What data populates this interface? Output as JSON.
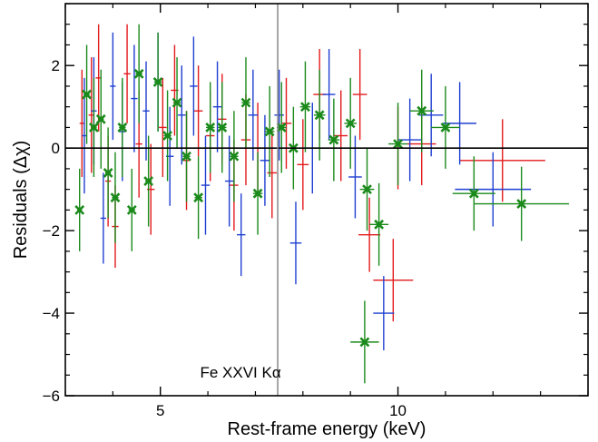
{
  "chart_data": {
    "type": "scatter",
    "title": "",
    "xlabel": "Rest-frame energy (keV)",
    "ylabel": "Residuals (Δχ)",
    "xlim": [
      3.0,
      14.0
    ],
    "ylim": [
      -6,
      3.5
    ],
    "x_ticks": [
      5,
      10
    ],
    "x_tick_labels": [
      "5",
      "10"
    ],
    "y_ticks": [
      -6,
      -4,
      -2,
      0,
      2
    ],
    "y_tick_labels": [
      "−6",
      "−4",
      "−2",
      "0",
      "2"
    ],
    "grid": false,
    "legend": "none",
    "zero_line": 0,
    "vertical_line": {
      "x": 7.47,
      "label": "Fe XXVI Kα"
    },
    "series": [
      {
        "color": "#e31a1c",
        "marker": "cross",
        "points": [
          {
            "x": 3.35,
            "y": 0.6,
            "xerr": 0.05,
            "yerr": 1.3
          },
          {
            "x": 3.55,
            "y": 0.8,
            "xerr": 0.06,
            "yerr": 1.4
          },
          {
            "x": 3.7,
            "y": 1.7,
            "xerr": 0.06,
            "yerr": 1.3
          },
          {
            "x": 3.9,
            "y": -0.8,
            "xerr": 0.06,
            "yerr": 1.1
          },
          {
            "x": 4.05,
            "y": -1.9,
            "xerr": 0.07,
            "yerr": 1.0
          },
          {
            "x": 4.3,
            "y": 1.8,
            "xerr": 0.07,
            "yerr": 1.2
          },
          {
            "x": 4.55,
            "y": 0.1,
            "xerr": 0.07,
            "yerr": 1.3
          },
          {
            "x": 4.8,
            "y": -1.0,
            "xerr": 0.08,
            "yerr": 1.1
          },
          {
            "x": 5.05,
            "y": 0.5,
            "xerr": 0.08,
            "yerr": 1.2
          },
          {
            "x": 5.3,
            "y": 1.4,
            "xerr": 0.08,
            "yerr": 1.1
          },
          {
            "x": 5.55,
            "y": -0.3,
            "xerr": 0.08,
            "yerr": 1.2
          },
          {
            "x": 5.8,
            "y": 0.9,
            "xerr": 0.09,
            "yerr": 1.1
          },
          {
            "x": 6.05,
            "y": 0.3,
            "xerr": 0.09,
            "yerr": 1.1
          },
          {
            "x": 6.3,
            "y": 0.7,
            "xerr": 0.09,
            "yerr": 1.1
          },
          {
            "x": 6.55,
            "y": -0.9,
            "xerr": 0.09,
            "yerr": 1.1
          },
          {
            "x": 6.8,
            "y": 0.2,
            "xerr": 0.1,
            "yerr": 1.1
          },
          {
            "x": 7.05,
            "y": 0.0,
            "xerr": 0.1,
            "yerr": 1.1
          },
          {
            "x": 7.35,
            "y": -0.6,
            "xerr": 0.1,
            "yerr": 1.1
          },
          {
            "x": 7.65,
            "y": 0.6,
            "xerr": 0.11,
            "yerr": 1.1
          },
          {
            "x": 8.0,
            "y": -0.4,
            "xerr": 0.12,
            "yerr": 1.1
          },
          {
            "x": 8.35,
            "y": 1.3,
            "xerr": 0.13,
            "yerr": 1.1
          },
          {
            "x": 8.8,
            "y": 0.3,
            "xerr": 0.14,
            "yerr": 1.1
          },
          {
            "x": 9.2,
            "y": 1.3,
            "xerr": 0.15,
            "yerr": 1.1
          },
          {
            "x": 9.4,
            "y": -2.1,
            "xerr": 0.23,
            "yerr": 0.9
          },
          {
            "x": 9.9,
            "y": -3.2,
            "xerr": 0.42,
            "yerr": 1.0
          },
          {
            "x": 10.0,
            "y": 0.0,
            "xerr": 0.3,
            "yerr": 1.0
          },
          {
            "x": 10.5,
            "y": 0.1,
            "xerr": 0.3,
            "yerr": 1.0
          },
          {
            "x": 12.2,
            "y": -0.3,
            "xerr": 0.9,
            "yerr": 1.0
          }
        ]
      },
      {
        "color": "#1f3fd1",
        "marker": "cross",
        "points": [
          {
            "x": 3.4,
            "y": 0.3,
            "xerr": 0.05,
            "yerr": 1.4
          },
          {
            "x": 3.6,
            "y": 0.9,
            "xerr": 0.06,
            "yerr": 1.3
          },
          {
            "x": 3.8,
            "y": -1.7,
            "xerr": 0.06,
            "yerr": 1.1
          },
          {
            "x": 4.0,
            "y": 1.5,
            "xerr": 0.06,
            "yerr": 1.3
          },
          {
            "x": 4.2,
            "y": 0.4,
            "xerr": 0.07,
            "yerr": 1.2
          },
          {
            "x": 4.45,
            "y": 1.2,
            "xerr": 0.07,
            "yerr": 1.3
          },
          {
            "x": 4.7,
            "y": 0.9,
            "xerr": 0.07,
            "yerr": 1.2
          },
          {
            "x": 4.95,
            "y": 1.6,
            "xerr": 0.08,
            "yerr": 1.2
          },
          {
            "x": 5.2,
            "y": -0.2,
            "xerr": 0.08,
            "yerr": 1.2
          },
          {
            "x": 5.45,
            "y": 0.8,
            "xerr": 0.08,
            "yerr": 1.2
          },
          {
            "x": 5.7,
            "y": 1.5,
            "xerr": 0.08,
            "yerr": 1.2
          },
          {
            "x": 5.95,
            "y": -0.9,
            "xerr": 0.09,
            "yerr": 1.2
          },
          {
            "x": 6.2,
            "y": 1.0,
            "xerr": 0.09,
            "yerr": 1.1
          },
          {
            "x": 6.45,
            "y": -0.8,
            "xerr": 0.09,
            "yerr": 1.1
          },
          {
            "x": 6.7,
            "y": -2.1,
            "xerr": 0.09,
            "yerr": 1.0
          },
          {
            "x": 6.95,
            "y": 0.8,
            "xerr": 0.1,
            "yerr": 1.1
          },
          {
            "x": 7.2,
            "y": -0.3,
            "xerr": 0.1,
            "yerr": 1.1
          },
          {
            "x": 7.5,
            "y": 0.8,
            "xerr": 0.1,
            "yerr": 1.1
          },
          {
            "x": 7.85,
            "y": -2.3,
            "xerr": 0.12,
            "yerr": 1.0
          },
          {
            "x": 8.2,
            "y": 0.0,
            "xerr": 0.12,
            "yerr": 1.1
          },
          {
            "x": 8.55,
            "y": 1.3,
            "xerr": 0.13,
            "yerr": 1.1
          },
          {
            "x": 9.1,
            "y": -0.7,
            "xerr": 0.14,
            "yerr": 1.0
          },
          {
            "x": 9.7,
            "y": -4.0,
            "xerr": 0.22,
            "yerr": 0.9
          },
          {
            "x": 10.25,
            "y": 0.2,
            "xerr": 0.25,
            "yerr": 1.0
          },
          {
            "x": 10.7,
            "y": 0.8,
            "xerr": 0.25,
            "yerr": 1.0
          },
          {
            "x": 11.3,
            "y": 0.6,
            "xerr": 0.35,
            "yerr": 1.0
          },
          {
            "x": 12.0,
            "y": -1.0,
            "xerr": 0.8,
            "yerr": 0.9
          }
        ]
      },
      {
        "color": "#1a8a1a",
        "marker": "x",
        "points": [
          {
            "x": 3.3,
            "y": -1.5,
            "xerr": 0.05,
            "yerr": 1.0
          },
          {
            "x": 3.45,
            "y": 1.3,
            "xerr": 0.06,
            "yerr": 1.2
          },
          {
            "x": 3.6,
            "y": 0.5,
            "xerr": 0.06,
            "yerr": 1.2
          },
          {
            "x": 3.75,
            "y": 0.7,
            "xerr": 0.06,
            "yerr": 1.2
          },
          {
            "x": 3.9,
            "y": -0.6,
            "xerr": 0.06,
            "yerr": 1.1
          },
          {
            "x": 4.05,
            "y": -1.2,
            "xerr": 0.07,
            "yerr": 1.1
          },
          {
            "x": 4.2,
            "y": 0.5,
            "xerr": 0.07,
            "yerr": 1.2
          },
          {
            "x": 4.4,
            "y": -1.5,
            "xerr": 0.07,
            "yerr": 1.0
          },
          {
            "x": 4.55,
            "y": 1.8,
            "xerr": 0.07,
            "yerr": 1.2
          },
          {
            "x": 4.75,
            "y": -0.8,
            "xerr": 0.07,
            "yerr": 1.1
          },
          {
            "x": 4.95,
            "y": 1.6,
            "xerr": 0.08,
            "yerr": 1.2
          },
          {
            "x": 5.15,
            "y": 0.3,
            "xerr": 0.08,
            "yerr": 1.1
          },
          {
            "x": 5.35,
            "y": 1.1,
            "xerr": 0.08,
            "yerr": 1.1
          },
          {
            "x": 5.55,
            "y": -0.2,
            "xerr": 0.08,
            "yerr": 1.1
          },
          {
            "x": 5.8,
            "y": -1.2,
            "xerr": 0.08,
            "yerr": 1.0
          },
          {
            "x": 6.05,
            "y": 0.5,
            "xerr": 0.09,
            "yerr": 1.1
          },
          {
            "x": 6.3,
            "y": 0.5,
            "xerr": 0.09,
            "yerr": 1.1
          },
          {
            "x": 6.55,
            "y": -0.2,
            "xerr": 0.09,
            "yerr": 1.1
          },
          {
            "x": 6.8,
            "y": 1.1,
            "xerr": 0.09,
            "yerr": 1.1
          },
          {
            "x": 7.05,
            "y": -1.1,
            "xerr": 0.1,
            "yerr": 1.0
          },
          {
            "x": 7.3,
            "y": 0.4,
            "xerr": 0.1,
            "yerr": 1.1
          },
          {
            "x": 7.55,
            "y": 0.5,
            "xerr": 0.1,
            "yerr": 1.1
          },
          {
            "x": 7.8,
            "y": 0.0,
            "xerr": 0.11,
            "yerr": 1.0
          },
          {
            "x": 8.05,
            "y": 1.0,
            "xerr": 0.11,
            "yerr": 1.1
          },
          {
            "x": 8.35,
            "y": 0.8,
            "xerr": 0.12,
            "yerr": 1.1
          },
          {
            "x": 8.65,
            "y": 0.2,
            "xerr": 0.12,
            "yerr": 1.0
          },
          {
            "x": 9.0,
            "y": 0.6,
            "xerr": 0.13,
            "yerr": 1.1
          },
          {
            "x": 9.35,
            "y": -1.0,
            "xerr": 0.15,
            "yerr": 1.0
          },
          {
            "x": 9.6,
            "y": -1.85,
            "xerr": 0.2,
            "yerr": 1.0
          },
          {
            "x": 10.0,
            "y": 0.1,
            "xerr": 0.2,
            "yerr": 1.0
          },
          {
            "x": 10.5,
            "y": 0.9,
            "xerr": 0.25,
            "yerr": 1.0
          },
          {
            "x": 11.0,
            "y": 0.5,
            "xerr": 0.3,
            "yerr": 1.0
          },
          {
            "x": 11.6,
            "y": -1.1,
            "xerr": 0.45,
            "yerr": 0.9
          },
          {
            "x": 12.6,
            "y": -1.35,
            "xerr": 1.0,
            "yerr": 0.9
          },
          {
            "x": 9.3,
            "y": -4.7,
            "xerr": 0.3,
            "yerr": 1.0
          }
        ]
      }
    ]
  }
}
